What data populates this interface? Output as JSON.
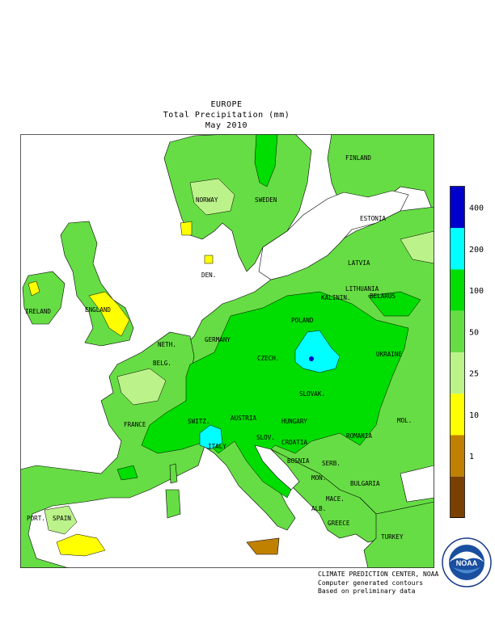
{
  "header": {
    "region": "EUROPE",
    "variable": "Total Precipitation (mm)",
    "period": "May 2010"
  },
  "map": {
    "country_labels": {
      "finland": "FINLAND",
      "norway": "NORWAY",
      "sweden": "SWEDEN",
      "estonia": "ESTONIA",
      "latvia": "LATVIA",
      "lithuania": "LITHUANIA",
      "kalinin": "KALININ.",
      "belarus": "BELARUS",
      "denmark": "DEN.",
      "ireland": "IRELAND",
      "england": "ENGLAND",
      "netherlands": "NETH.",
      "germany": "GERMANY",
      "poland": "POLAND",
      "belgium": "BELG.",
      "czech": "CZECH.",
      "slovakia": "SLOVAK.",
      "ukraine": "UKRAINE",
      "france": "FRANCE",
      "switzerland": "SWITZ.",
      "austria": "AUSTRIA",
      "hungary": "HUNGARY",
      "moldova": "MOL.",
      "slovenia": "SLOV.",
      "italy": "ITALY",
      "croatia": "CROATIA",
      "romania": "ROMANIA",
      "bosnia": "BOSNIA",
      "serbia": "SERB.",
      "montenegro": "MON.",
      "bulgaria": "BULGARIA",
      "macedonia": "MACE.",
      "albania": "ALB.",
      "greece": "GREECE",
      "turkey": "TURKEY",
      "portugal": "PORT.",
      "spain": "SPAIN"
    }
  },
  "legend": {
    "ticks": [
      "400",
      "200",
      "100",
      "50",
      "25",
      "10",
      "1"
    ],
    "colors": [
      "#0000cc",
      "#00ffff",
      "#00dd00",
      "#66dd44",
      "#bbf28a",
      "#ffff00",
      "#c08000",
      "#7a4000"
    ]
  },
  "footer": {
    "line1": "CLIMATE PREDICTION CENTER, NOAA",
    "line2": "Computer generated contours",
    "line3": "Based on preliminary data"
  },
  "logo": {
    "text": "NOAA",
    "icon": "noaa-logo-icon"
  }
}
